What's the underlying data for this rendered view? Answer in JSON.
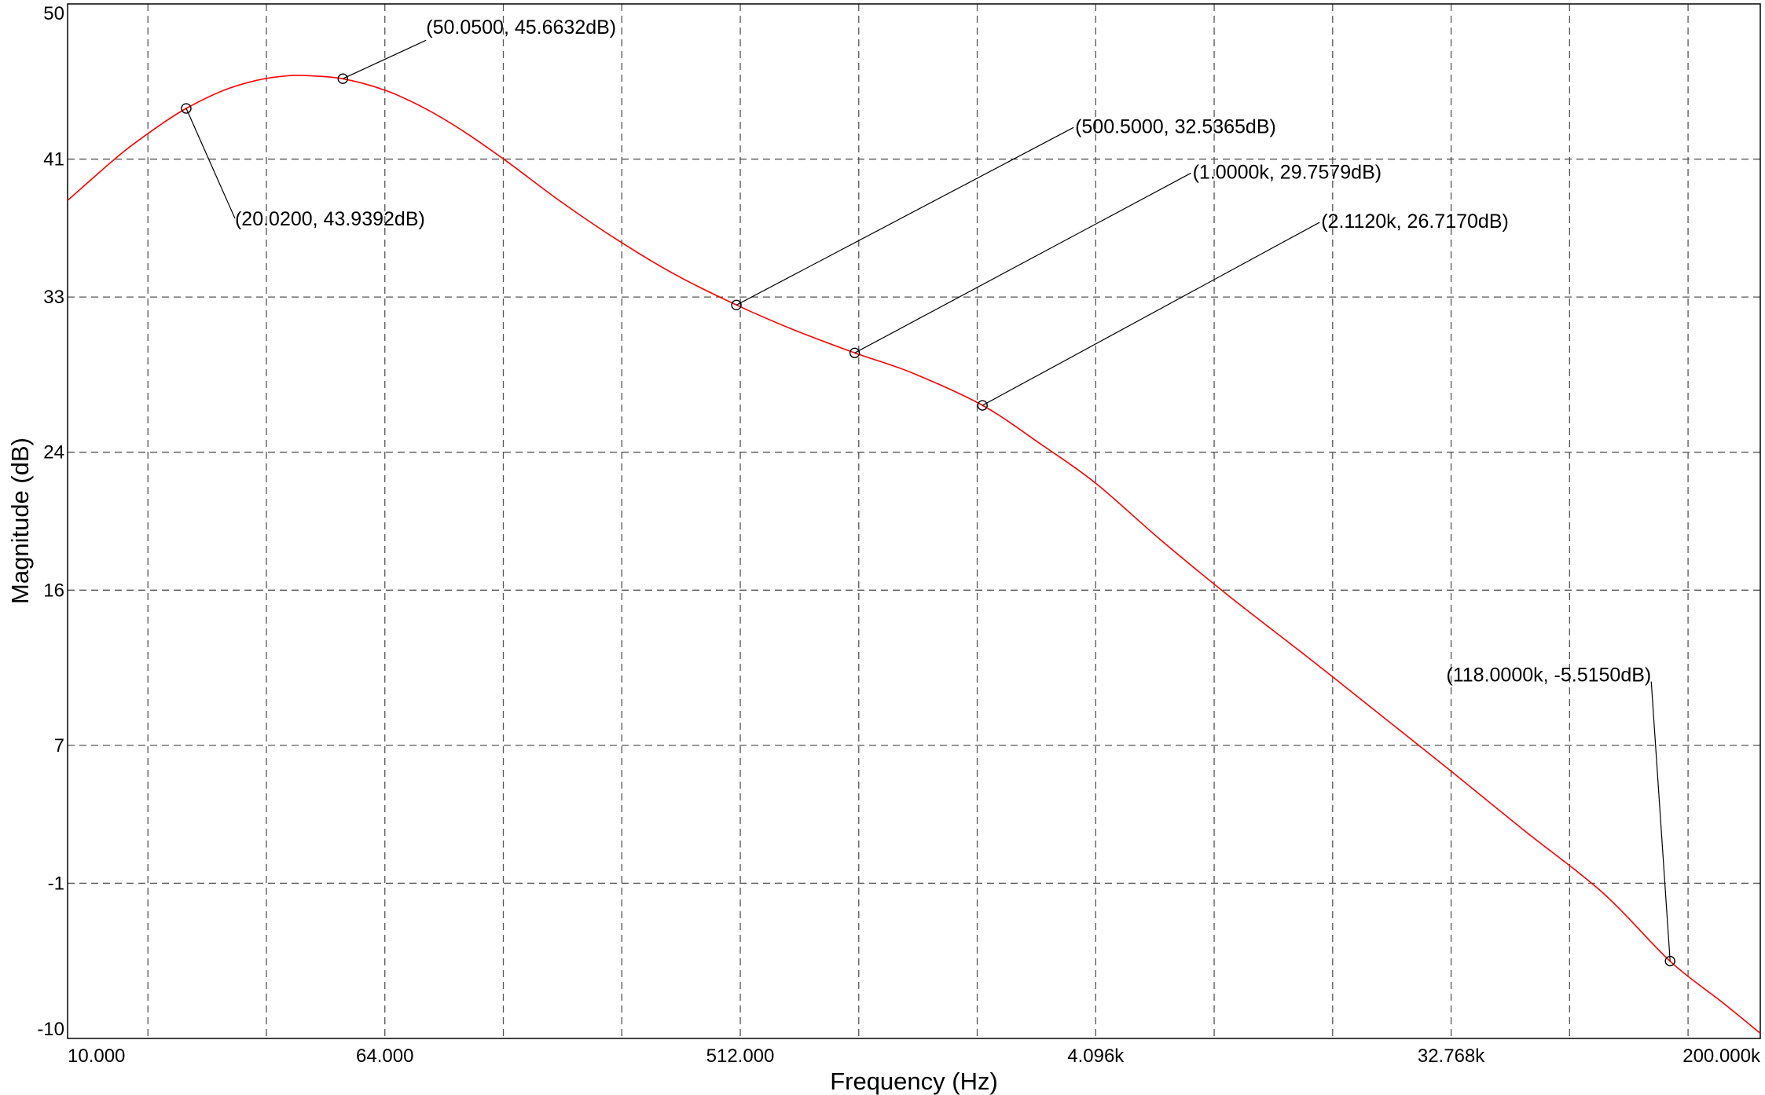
{
  "chart_data": {
    "type": "line",
    "xlabel": "Frequency (Hz)",
    "ylabel": "Magnitude (dB)",
    "x_scale": "log",
    "xlim": [
      10,
      200000
    ],
    "ylim": [
      -10,
      50
    ],
    "x_ticks": [
      {
        "value": 10,
        "label": "10.000"
      },
      {
        "value": 64,
        "label": "64.000"
      },
      {
        "value": 512,
        "label": "512.000"
      },
      {
        "value": 4096,
        "label": "4.096k"
      },
      {
        "value": 32768,
        "label": "32.768k"
      },
      {
        "value": 200000,
        "label": "200.000k"
      }
    ],
    "x_gridlines": [
      16,
      32,
      64,
      128,
      256,
      512,
      1024,
      2048,
      4096,
      8192,
      16384,
      32768,
      65536,
      131072
    ],
    "y_ticks": [
      {
        "value": 50,
        "label": "50"
      },
      {
        "value": 41,
        "label": "41"
      },
      {
        "value": 33,
        "label": "33"
      },
      {
        "value": 24,
        "label": "24"
      },
      {
        "value": 16,
        "label": "16"
      },
      {
        "value": 7,
        "label": "7"
      },
      {
        "value": -1,
        "label": "-1"
      },
      {
        "value": -10,
        "label": "-10"
      }
    ],
    "y_gridlines": [
      41,
      33,
      24,
      16,
      7,
      -1
    ],
    "grid": true,
    "series": [
      {
        "color": "#ff0000",
        "x": [
          10,
          12,
          14,
          17,
          20.02,
          25,
          30,
          35,
          40,
          50.05,
          64,
          80,
          100,
          130,
          180,
          250,
          350,
          500.5,
          700,
          1000,
          1400,
          2112,
          3000,
          4096,
          6000,
          9000,
          14000,
          20000,
          32768,
          50000,
          80000,
          118000,
          160000,
          200000
        ],
        "y": [
          38.6,
          40.2,
          41.5,
          42.9,
          43.94,
          45.0,
          45.55,
          45.8,
          45.85,
          45.66,
          45.0,
          44.0,
          42.7,
          40.9,
          38.5,
          36.3,
          34.3,
          32.54,
          31.1,
          29.76,
          28.6,
          26.72,
          24.4,
          22.2,
          18.9,
          15.6,
          12.2,
          9.4,
          5.5,
          2.1,
          -1.6,
          -5.52,
          -7.9,
          -9.7
        ]
      }
    ],
    "annotations": [
      {
        "x": 20.02,
        "y": 43.9392,
        "text": "(20.0200, 43.9392dB)"
      },
      {
        "x": 50.05,
        "y": 45.6632,
        "text": "(50.0500, 45.6632dB)"
      },
      {
        "x": 500.5,
        "y": 32.5365,
        "text": "(500.5000, 32.5365dB)"
      },
      {
        "x": 1000,
        "y": 29.7579,
        "text": "(1.0000k, 29.7579dB)"
      },
      {
        "x": 2112,
        "y": 26.717,
        "text": "(2.1120k, 26.7170dB)"
      },
      {
        "x": 118000,
        "y": -5.515,
        "text": "(118.0000k, -5.5150dB)"
      }
    ]
  }
}
